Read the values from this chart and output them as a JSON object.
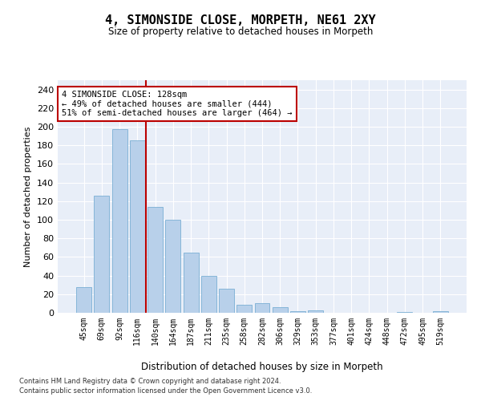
{
  "title": "4, SIMONSIDE CLOSE, MORPETH, NE61 2XY",
  "subtitle": "Size of property relative to detached houses in Morpeth",
  "xlabel": "Distribution of detached houses by size in Morpeth",
  "ylabel": "Number of detached properties",
  "categories": [
    "45sqm",
    "69sqm",
    "92sqm",
    "116sqm",
    "140sqm",
    "164sqm",
    "187sqm",
    "211sqm",
    "235sqm",
    "258sqm",
    "282sqm",
    "306sqm",
    "329sqm",
    "353sqm",
    "377sqm",
    "401sqm",
    "424sqm",
    "448sqm",
    "472sqm",
    "495sqm",
    "519sqm"
  ],
  "values": [
    28,
    126,
    197,
    185,
    114,
    100,
    65,
    40,
    26,
    9,
    10,
    6,
    2,
    3,
    0,
    0,
    0,
    0,
    1,
    0,
    2
  ],
  "bar_color": "#b8d0ea",
  "bar_edge_color": "#7aafd4",
  "vline_x": 3.5,
  "vline_color": "#bb0000",
  "annotation_text": "4 SIMONSIDE CLOSE: 128sqm\n← 49% of detached houses are smaller (444)\n51% of semi-detached houses are larger (464) →",
  "annotation_box_facecolor": "#ffffff",
  "annotation_box_edgecolor": "#bb0000",
  "ylim": [
    0,
    250
  ],
  "yticks": [
    0,
    20,
    40,
    60,
    80,
    100,
    120,
    140,
    160,
    180,
    200,
    220,
    240
  ],
  "bg_color": "#e8eef8",
  "grid_color": "#ffffff",
  "footer_line1": "Contains HM Land Registry data © Crown copyright and database right 2024.",
  "footer_line2": "Contains public sector information licensed under the Open Government Licence v3.0."
}
